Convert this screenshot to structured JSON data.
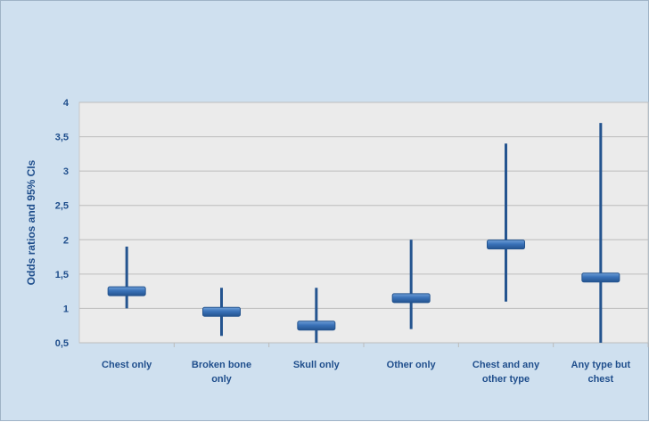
{
  "chart_data": {
    "type": "bar",
    "title": "",
    "xlabel": "",
    "ylabel": "Odds ratios and 95% CIs",
    "ylim": [
      0.5,
      4
    ],
    "yticks": [
      "0,5",
      "1",
      "1,5",
      "2",
      "2,5",
      "3",
      "3,5",
      "4"
    ],
    "grid": true,
    "categories": [
      [
        "Chest only"
      ],
      [
        "Broken bone",
        "only"
      ],
      [
        "Skull only"
      ],
      [
        "Other only"
      ],
      [
        "Chest and any",
        "other type"
      ],
      [
        "Any type but",
        "chest"
      ]
    ],
    "series": [
      {
        "odds_ratio": [
          1.25,
          0.95,
          0.75,
          1.15,
          1.93,
          1.45
        ],
        "ci_low": [
          1.0,
          0.6,
          0.5,
          0.7,
          1.1,
          0.5
        ],
        "ci_high": [
          1.9,
          1.3,
          1.3,
          2.0,
          3.4,
          3.7
        ]
      }
    ],
    "colors": {
      "marker": "#3a72b8",
      "marker_dark": "#24548f",
      "axis_text": "#1f4e8c",
      "plot_bg": "#ebebeb",
      "grid": "#bcbcbc"
    }
  }
}
